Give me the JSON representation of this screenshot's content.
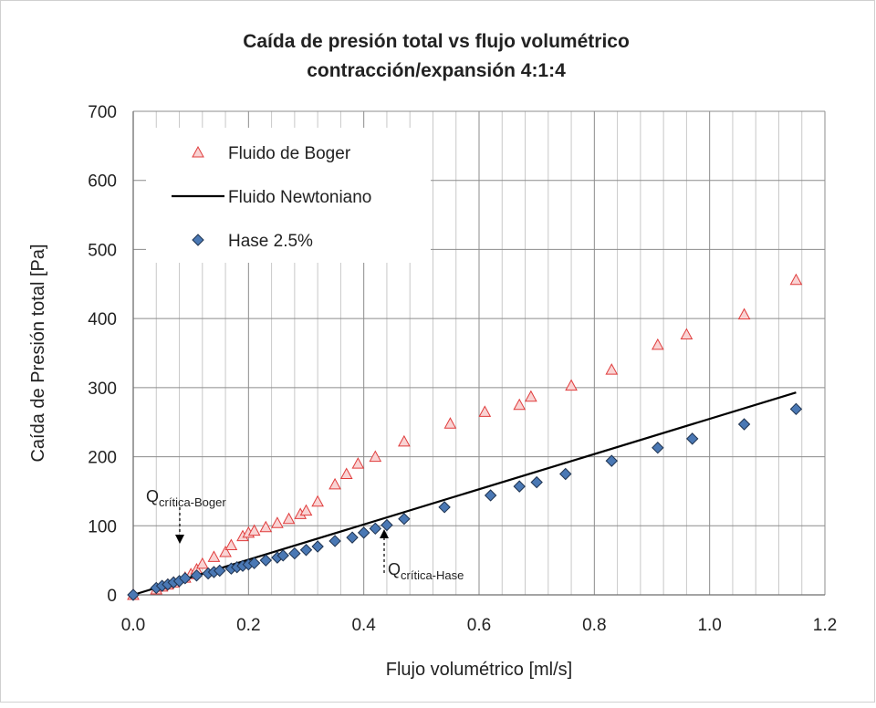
{
  "chart_data": {
    "type": "scatter",
    "title": [
      "Caída de presión total vs flujo volumétrico",
      "contracción/expansión 4:1:4"
    ],
    "xlabel": "Flujo volumétrico [ml/s]",
    "ylabel": "Caída de Presión total [Pa]",
    "xlim": [
      0,
      1.2
    ],
    "ylim": [
      0,
      700
    ],
    "xticks": [
      {
        "value": 0,
        "label": "0.0"
      },
      0.2,
      0.4,
      0.6,
      0.8,
      {
        "value": 1,
        "label": "1.0"
      },
      1.2
    ],
    "xminorticks": [
      0.04,
      0.08,
      0.12,
      0.16,
      0.24,
      0.28,
      0.32,
      0.36,
      0.44,
      0.48,
      0.52,
      0.56,
      0.64,
      0.68,
      0.72,
      0.76,
      0.84,
      0.88,
      0.92,
      0.96,
      1.04,
      1.08,
      1.12,
      1.16
    ],
    "yticks": [
      0,
      100,
      200,
      300,
      400,
      500,
      600,
      700
    ],
    "grid": true,
    "legend": "upper-left",
    "series": [
      {
        "name": "Fluido de Boger",
        "style": "triangle",
        "color": "#e03c3c",
        "fill": "#f9d3d3",
        "x": [
          0,
          0.04,
          0.05,
          0.06,
          0.07,
          0.09,
          0.1,
          0.11,
          0.12,
          0.14,
          0.16,
          0.17,
          0.19,
          0.2,
          0.21,
          0.23,
          0.25,
          0.27,
          0.29,
          0.3,
          0.32,
          0.35,
          0.37,
          0.39,
          0.42,
          0.47,
          0.55,
          0.61,
          0.67,
          0.69,
          0.76,
          0.83,
          0.91,
          0.96,
          1.06,
          1.15
        ],
        "values": [
          0,
          8,
          12,
          15,
          18,
          25,
          30,
          37,
          45,
          55,
          62,
          72,
          85,
          90,
          93,
          98,
          104,
          110,
          117,
          122,
          135,
          160,
          175,
          190,
          200,
          222,
          248,
          265,
          275,
          287,
          303,
          326,
          362,
          377,
          406,
          456
        ]
      },
      {
        "name": "Fluido Newtoniano",
        "style": "line",
        "color": "#000000",
        "x": [
          0,
          1.15
        ],
        "values": [
          0,
          293
        ]
      },
      {
        "name": "Hase 2.5%",
        "style": "diamond",
        "color": "#1f3350",
        "fill": "#4a78b4",
        "x": [
          0,
          0.04,
          0.05,
          0.06,
          0.07,
          0.08,
          0.09,
          0.11,
          0.13,
          0.14,
          0.15,
          0.17,
          0.18,
          0.19,
          0.2,
          0.21,
          0.23,
          0.25,
          0.26,
          0.28,
          0.3,
          0.32,
          0.35,
          0.38,
          0.4,
          0.42,
          0.44,
          0.47,
          0.54,
          0.62,
          0.67,
          0.7,
          0.75,
          0.83,
          0.91,
          0.97,
          1.06,
          1.15
        ],
        "values": [
          0,
          10,
          13,
          15,
          18,
          20,
          24,
          28,
          31,
          33,
          35,
          38,
          40,
          42,
          44,
          46,
          50,
          54,
          57,
          60,
          65,
          70,
          78,
          83,
          90,
          96,
          101,
          110,
          127,
          144,
          157,
          163,
          175,
          194,
          213,
          226,
          247,
          269
        ]
      }
    ],
    "annotations": [
      {
        "text": "Q",
        "sub": "crítica-Boger"
      },
      {
        "text": "Q",
        "sub": "crítica-Hase"
      }
    ]
  }
}
